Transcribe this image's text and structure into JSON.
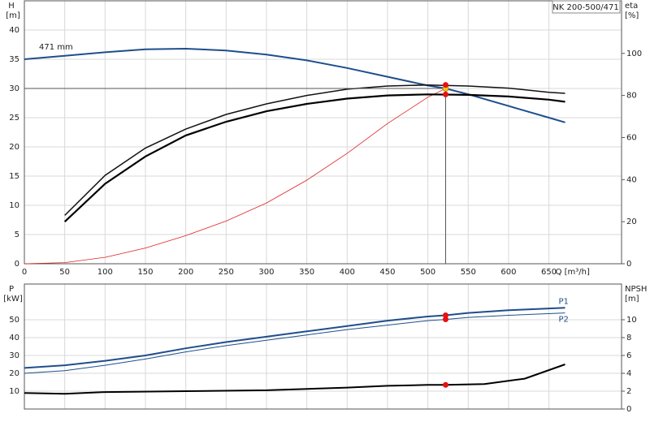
{
  "chart_data": [
    {
      "type": "line",
      "title": "NK 200-500/471",
      "xlabel": "Q [m³/h]",
      "ylabel": "H",
      "yunit": "[m]",
      "y2label": "eta",
      "y2unit": "[%]",
      "xlim": [
        0,
        740
      ],
      "xticks": [
        0,
        50,
        100,
        150,
        200,
        250,
        300,
        350,
        400,
        450,
        500,
        550,
        600,
        650
      ],
      "ylim": [
        0,
        45
      ],
      "yticks": [
        0,
        5,
        10,
        15,
        20,
        25,
        30,
        35,
        40
      ],
      "y2lim": [
        0,
        125
      ],
      "y2ticks": [
        0,
        20,
        40,
        60,
        80,
        100
      ],
      "grid": true,
      "xtick_labels": true,
      "series": [
        {
          "label": "471 mm",
          "label_side": "start",
          "color": "#1f4e8c",
          "width": 2,
          "x": [
            0,
            50,
            100,
            150,
            200,
            250,
            300,
            350,
            400,
            450,
            500,
            522,
            550,
            600,
            650,
            670
          ],
          "values": [
            35,
            35.6,
            36.2,
            36.7,
            36.8,
            36.5,
            35.8,
            34.8,
            33.5,
            32,
            30.5,
            30,
            29,
            27,
            25,
            24.2
          ]
        },
        {
          "color": "#e02020",
          "width": 0.8,
          "x": [
            0,
            50,
            100,
            150,
            200,
            250,
            300,
            350,
            400,
            450,
            500,
            522
          ],
          "values": [
            0,
            0.2,
            1.1,
            2.7,
            4.8,
            7.3,
            10.4,
            14.3,
            18.9,
            24,
            28.5,
            30
          ]
        },
        {
          "axis": "y2",
          "color": "#111",
          "width": 1.5,
          "x": [
            50,
            100,
            150,
            200,
            250,
            300,
            350,
            400,
            450,
            500,
            550,
            600,
            650,
            670
          ],
          "values": [
            23,
            42,
            55,
            64,
            71,
            76,
            80,
            83,
            84.5,
            85,
            84.5,
            83.5,
            81.5,
            81
          ]
        },
        {
          "axis": "y2",
          "color": "#000",
          "width": 2.2,
          "x": [
            50,
            100,
            150,
            200,
            250,
            300,
            350,
            400,
            450,
            500,
            550,
            600,
            650,
            670
          ],
          "values": [
            20,
            38,
            51,
            61,
            67.5,
            72.5,
            76,
            78.5,
            80,
            80.5,
            80.3,
            79.5,
            78,
            77
          ]
        },
        {
          "marker": true,
          "guide": true,
          "color": "#f5c518",
          "x": [
            522
          ],
          "values": [
            30
          ]
        },
        {
          "marker": true,
          "axis": "y2",
          "color": "#e81010",
          "x": [
            522,
            522
          ],
          "values": [
            85,
            80.5
          ]
        }
      ]
    },
    {
      "type": "line",
      "ylabel": "P",
      "yunit": "[kW]",
      "y2label": "NPSH",
      "y2unit": "[m]",
      "xlim": [
        0,
        740
      ],
      "xticks": [
        0,
        50,
        100,
        150,
        200,
        250,
        300,
        350,
        400,
        450,
        500,
        550,
        600,
        650
      ],
      "ylim": [
        0,
        70
      ],
      "yticks": [
        10,
        20,
        30,
        40,
        50
      ],
      "y2lim": [
        0,
        14
      ],
      "y2ticks": [
        0,
        2,
        4,
        6,
        8,
        10
      ],
      "grid": true,
      "xtick_labels": false,
      "series": [
        {
          "label": "P1",
          "label_side": "above",
          "color": "#1f4e8c",
          "width": 2,
          "x": [
            0,
            50,
            100,
            150,
            200,
            250,
            300,
            350,
            400,
            450,
            500,
            522,
            550,
            600,
            670
          ],
          "values": [
            23,
            24.5,
            27,
            30,
            34,
            37.5,
            40.5,
            43.5,
            46.5,
            49.5,
            51.8,
            52.5,
            53.8,
            55.3,
            56.7
          ]
        },
        {
          "label": "P2",
          "label_side": "below",
          "color": "#1f4e8c",
          "width": 1,
          "x": [
            0,
            50,
            100,
            150,
            200,
            250,
            300,
            350,
            400,
            450,
            500,
            522,
            550,
            600,
            670
          ],
          "values": [
            20,
            21.5,
            24.5,
            28,
            32,
            35.5,
            38.5,
            41.5,
            44.5,
            47,
            49.5,
            50.2,
            51.3,
            52.5,
            53.8
          ]
        },
        {
          "axis": "y2",
          "color": "#000",
          "width": 2,
          "x": [
            0,
            50,
            100,
            200,
            300,
            400,
            450,
            500,
            522,
            570,
            620,
            670
          ],
          "values": [
            1.8,
            1.7,
            1.9,
            2.0,
            2.1,
            2.4,
            2.6,
            2.7,
            2.7,
            2.8,
            3.4,
            5.0
          ]
        },
        {
          "marker": true,
          "color": "#e81010",
          "x": [
            522,
            522
          ],
          "values": [
            52.5,
            50.2
          ]
        },
        {
          "marker": true,
          "axis": "y2",
          "color": "#e81010",
          "x": [
            522
          ],
          "values": [
            2.7
          ]
        }
      ]
    }
  ]
}
